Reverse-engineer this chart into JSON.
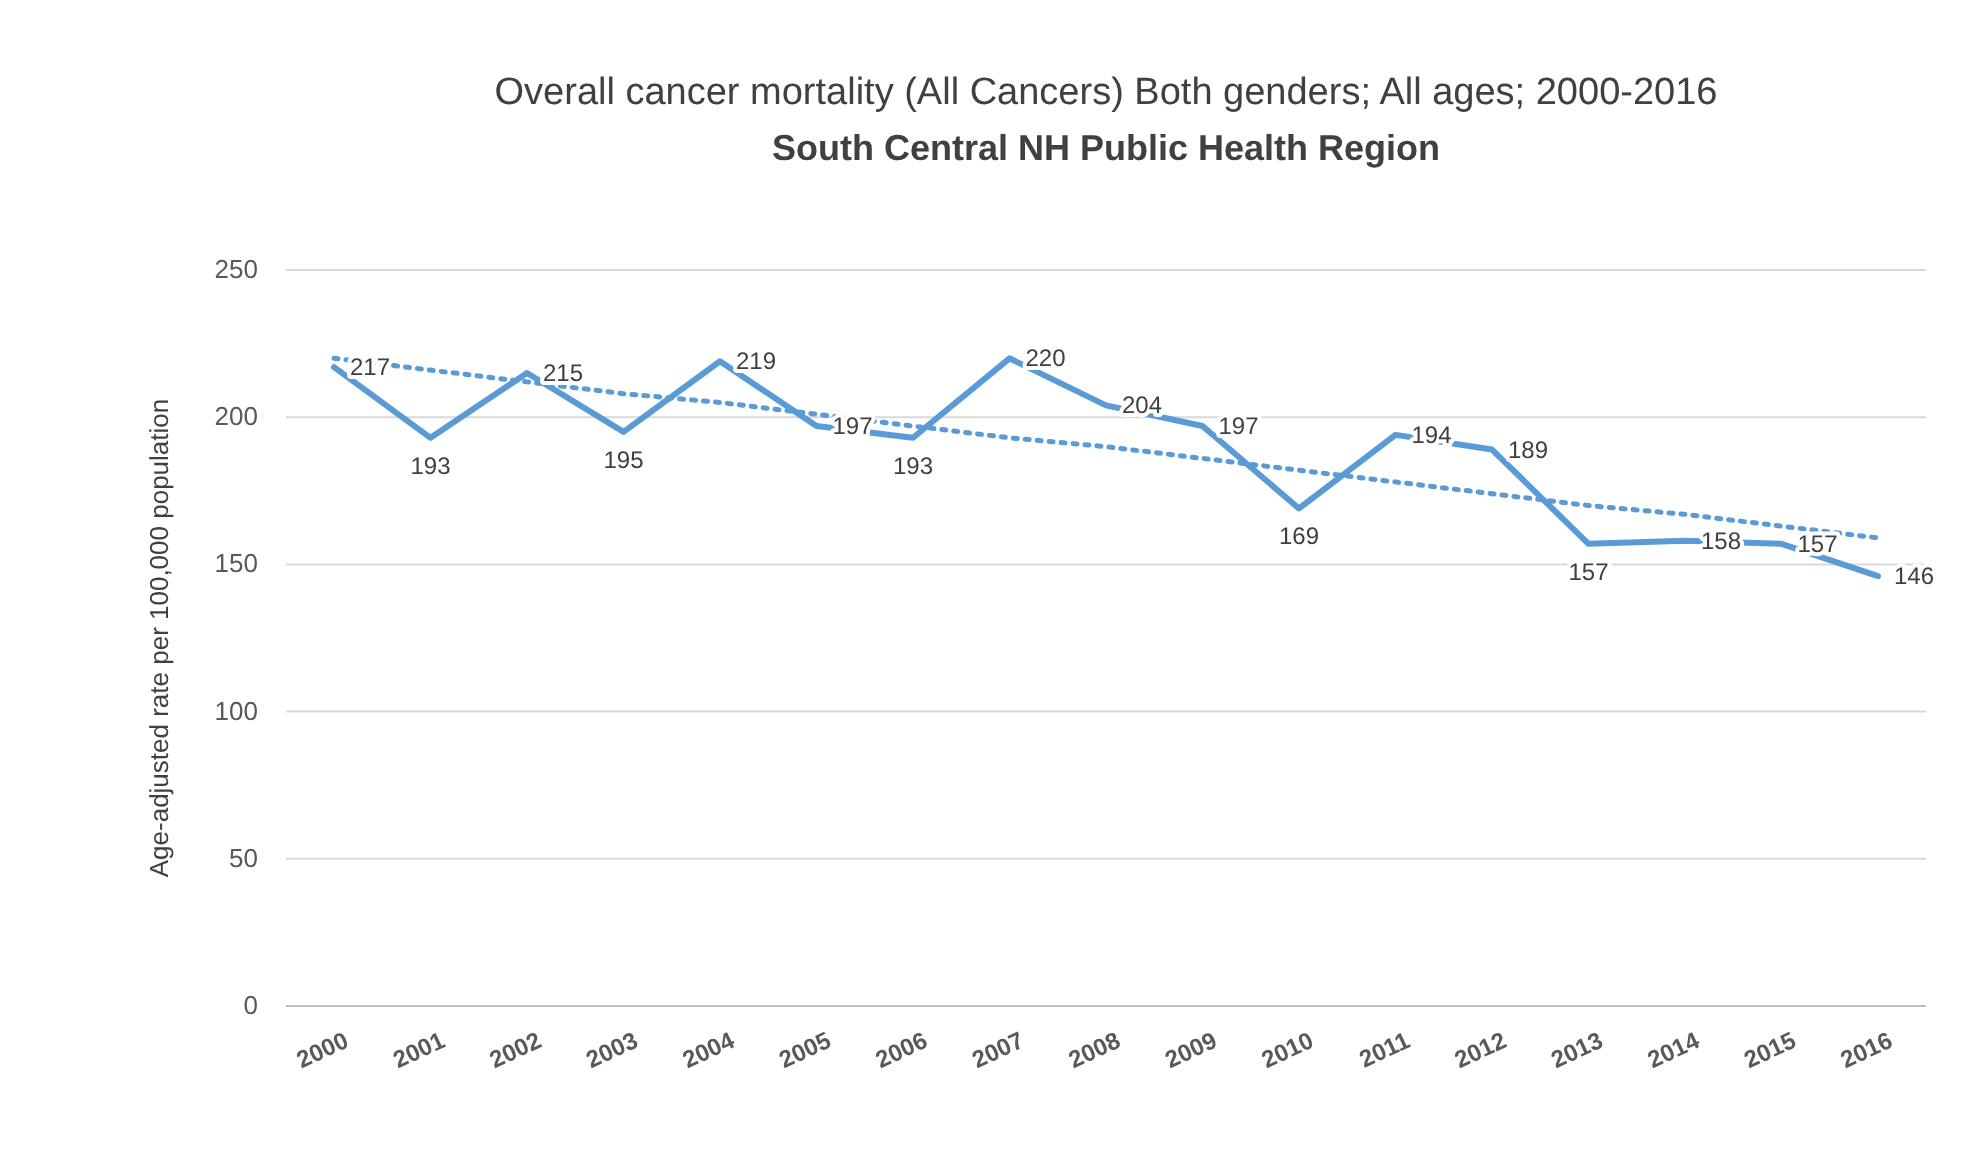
{
  "chart_data": {
    "type": "line",
    "title": "Overall cancer mortality (All Cancers) Both genders; All ages; 2000-2016",
    "subtitle": "South Central NH Public Health Region",
    "ylabel": "Age-adjusted rate per 100,000 population",
    "categories": [
      "2000",
      "2001",
      "2002",
      "2003",
      "2004",
      "2005",
      "2006",
      "2007",
      "2008",
      "2009",
      "2010",
      "2011",
      "2012",
      "2013",
      "2014",
      "2015",
      "2016"
    ],
    "series": [
      {
        "color": "#5b9bd5",
        "values": [
          217,
          193,
          215,
          195,
          219,
          197,
          193,
          220,
          204,
          197,
          169,
          194,
          189,
          157,
          158,
          157,
          146
        ],
        "value_labels": [
          "217",
          "193",
          "215",
          "195",
          "219",
          "197",
          "193",
          "220",
          "204",
          "197",
          "169",
          "194",
          "189",
          "157",
          "158",
          "157",
          "146"
        ]
      },
      {
        "type": "line",
        "color": "#5b9bd5",
        "line_style": "dotted",
        "values": [
          220,
          216,
          212,
          208,
          205,
          201,
          197,
          193,
          190,
          186,
          182,
          178,
          174,
          170,
          167,
          163,
          159
        ]
      }
    ],
    "ylim": [
      0,
      250
    ],
    "yticks": [
      0,
      50,
      100,
      150,
      200,
      250
    ],
    "grid": "y"
  }
}
